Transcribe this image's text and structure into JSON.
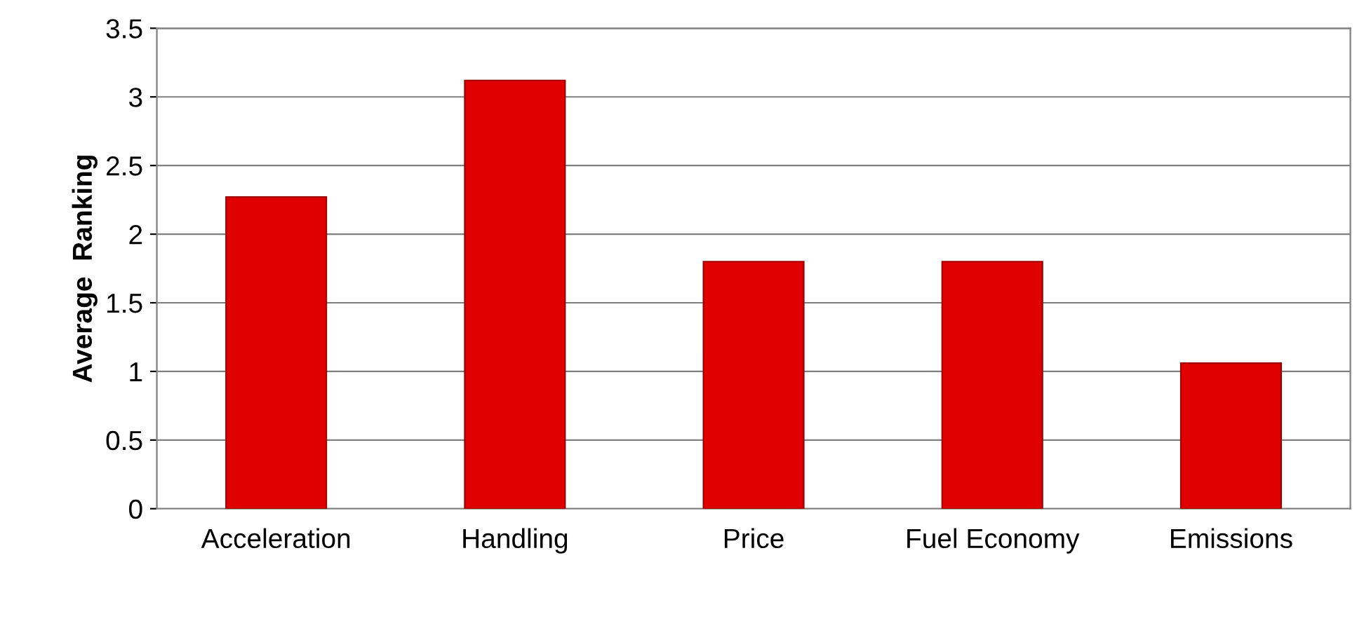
{
  "chart_data": {
    "type": "bar",
    "ylabel": "Average  Ranking",
    "categories": [
      "Acceleration",
      "Handling",
      "Price",
      "Fuel Economy",
      "Emissions"
    ],
    "values": [
      2.27,
      3.12,
      1.8,
      1.8,
      1.06
    ],
    "color": "#e00000",
    "ylim": [
      0,
      3.5
    ],
    "yticks": [
      0,
      0.5,
      1,
      1.5,
      2,
      2.5,
      3,
      3.5
    ],
    "grid": "y"
  }
}
